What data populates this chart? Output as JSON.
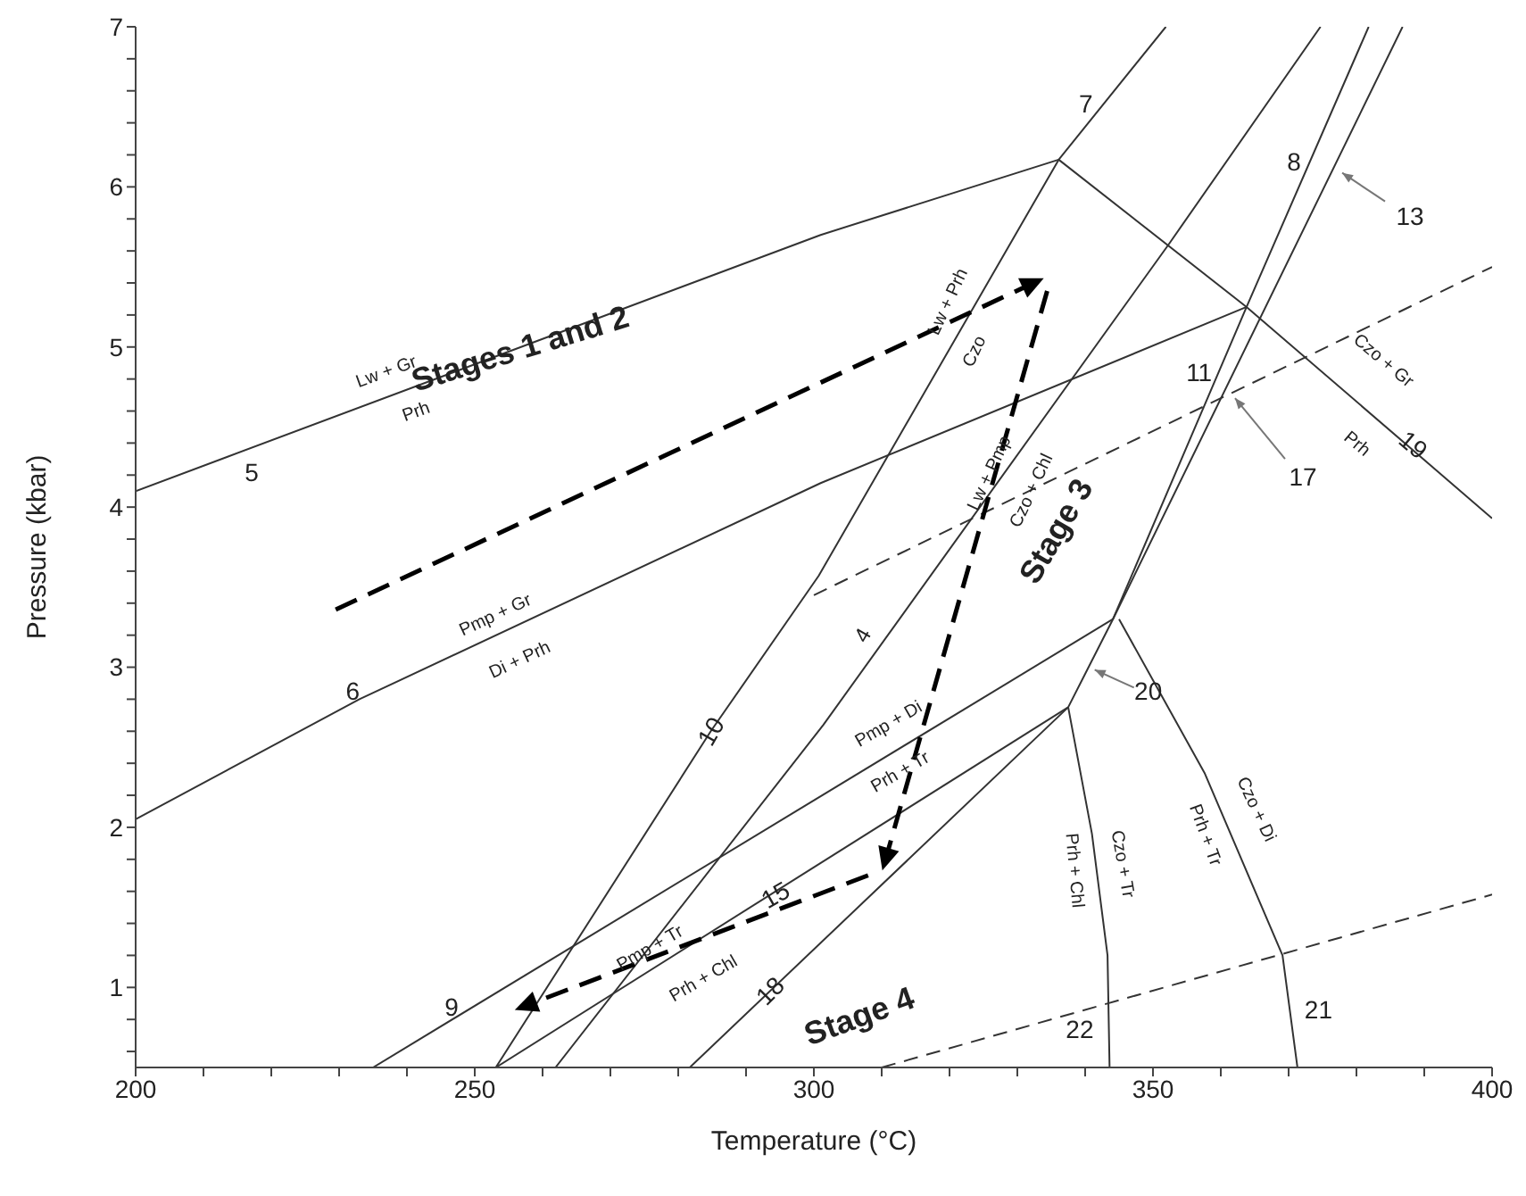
{
  "chart_data": {
    "type": "line",
    "xlabel": "Temperature (°C)",
    "ylabel": "Pressure (kbar)",
    "xlim": [
      200,
      400
    ],
    "ylim": [
      0.5,
      7
    ],
    "xticks": [
      200,
      {
        "value": 210,
        "label": null
      },
      {
        "value": 220,
        "label": null
      },
      {
        "value": 230,
        "label": null
      },
      {
        "value": 240,
        "label": null
      },
      250,
      {
        "value": 260,
        "label": null
      },
      {
        "value": 270,
        "label": null
      },
      {
        "value": 280,
        "label": null
      },
      {
        "value": 290,
        "label": null
      },
      300,
      {
        "value": 310,
        "label": null
      },
      {
        "value": 320,
        "label": null
      },
      {
        "value": 330,
        "label": null
      },
      {
        "value": 340,
        "label": null
      },
      350,
      {
        "value": 360,
        "label": null
      },
      {
        "value": 370,
        "label": null
      },
      {
        "value": 380,
        "label": null
      },
      {
        "value": 390,
        "label": null
      },
      400
    ],
    "yticks": [
      {
        "value": 0.6,
        "label": null
      },
      {
        "value": 0.8,
        "label": null
      },
      1,
      {
        "value": 1.2,
        "label": null
      },
      {
        "value": 1.4,
        "label": null
      },
      {
        "value": 1.6,
        "label": null
      },
      {
        "value": 1.8,
        "label": null
      },
      2,
      {
        "value": 2.2,
        "label": null
      },
      {
        "value": 2.4,
        "label": null
      },
      {
        "value": 2.6,
        "label": null
      },
      {
        "value": 2.8,
        "label": null
      },
      3,
      {
        "value": 3.2,
        "label": null
      },
      {
        "value": 3.4,
        "label": null
      },
      {
        "value": 3.6,
        "label": null
      },
      {
        "value": 3.8,
        "label": null
      },
      4,
      {
        "value": 4.2,
        "label": null
      },
      {
        "value": 4.4,
        "label": null
      },
      {
        "value": 4.6,
        "label": null
      },
      {
        "value": 4.8,
        "label": null
      },
      5,
      {
        "value": 5.2,
        "label": null
      },
      {
        "value": 5.4,
        "label": null
      },
      {
        "value": 5.6,
        "label": null
      },
      {
        "value": 5.8,
        "label": null
      },
      6,
      {
        "value": 6.2,
        "label": null
      },
      {
        "value": 6.4,
        "label": null
      },
      {
        "value": 6.6,
        "label": null
      },
      {
        "value": 6.8,
        "label": null
      },
      7
    ],
    "line_style": "solid",
    "series": [
      {
        "color": "#333333",
        "x": [
          200,
          301,
          336.1
        ],
        "values": [
          4.1,
          5.7,
          6.17
        ]
      },
      {
        "color": "#333333",
        "x": [
          336.1,
          363.8,
          400
        ],
        "values": [
          6.17,
          5.25,
          3.93
        ]
      },
      {
        "color": "#333333",
        "x": [
          200,
          233,
          301,
          363.8
        ],
        "values": [
          2.05,
          2.8,
          4.15,
          5.25
        ]
      },
      {
        "color": "#333333",
        "x": [
          253.1,
          284.8,
          300.7,
          336.1,
          351.9
        ],
        "values": [
          0.5,
          2.6,
          3.57,
          6.17,
          7
        ]
      },
      {
        "color": "#333333",
        "x": [
          261.9,
          301.4,
          352.3,
          374.7
        ],
        "values": [
          0.5,
          2.64,
          5.64,
          7
        ]
      },
      {
        "color": "#333333",
        "x": [
          344.1,
          363.8,
          381.8
        ],
        "values": [
          3.3,
          5.25,
          7
        ]
      },
      {
        "color": "#333333",
        "x": [
          235,
          344.1
        ],
        "values": [
          0.5,
          3.3
        ]
      },
      {
        "color": "#333333",
        "x": [
          253.1,
          337.5
        ],
        "values": [
          0.5,
          2.75
        ]
      },
      {
        "color": "#333333",
        "x": [
          281.7,
          337.5,
          344.1,
          386.8
        ],
        "values": [
          0.5,
          2.75,
          3.3,
          7
        ]
      },
      {
        "color": "#333333",
        "x": [
          337.5,
          341,
          343.3,
          343.6
        ],
        "values": [
          2.75,
          1.96,
          1.2,
          0.5
        ]
      },
      {
        "color": "#333333",
        "x": [
          345,
          357.6,
          369.1,
          371.3
        ],
        "values": [
          3.3,
          2.34,
          1.2,
          0.5
        ]
      },
      {
        "color": "#333333",
        "line_style": "dashed",
        "x": [
          300,
          400
        ],
        "values": [
          3.45,
          5.5
        ]
      },
      {
        "color": "#333333",
        "line_style": "dashed",
        "x": [
          310,
          400
        ],
        "values": [
          0.5,
          1.58
        ]
      }
    ],
    "annotations": [
      "5",
      "Lw + Gr",
      "Prh",
      "Stages 1 and 2",
      "6",
      "Pmp + Gr",
      "Di + Prh",
      "10",
      "9",
      "Pmp + Tr",
      "15",
      "Prh + Chl",
      "18",
      "Stage 4",
      "22",
      "21",
      "Prh + Chl",
      "Czo + Tr",
      "Prh + Tr",
      "Czo + Di",
      "20",
      "Pmp + Di",
      "Prh + Tr",
      "4",
      "Stage 3",
      "7",
      "8",
      "13",
      "Lw + Prh",
      "Czo",
      "Lw + Pmp",
      "Czo + Chl",
      "11",
      "17",
      "Czo + Gr",
      "Prh",
      "19"
    ]
  }
}
